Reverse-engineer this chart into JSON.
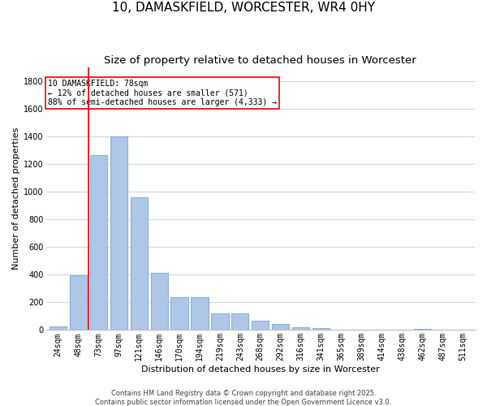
{
  "title": "10, DAMASKFIELD, WORCESTER, WR4 0HY",
  "subtitle": "Size of property relative to detached houses in Worcester",
  "xlabel": "Distribution of detached houses by size in Worcester",
  "ylabel": "Number of detached properties",
  "footer_line1": "Contains HM Land Registry data © Crown copyright and database right 2025.",
  "footer_line2": "Contains public sector information licensed under the Open Government Licence v3.0.",
  "annotation_line1": "10 DAMASKFIELD: 78sqm",
  "annotation_line2": "← 12% of detached houses are smaller (571)",
  "annotation_line3": "88% of semi-detached houses are larger (4,333) →",
  "bar_color": "#aec6e8",
  "bar_edgecolor": "#6699cc",
  "vline_color": "red",
  "vline_x_pos": 1.5,
  "categories": [
    "24sqm",
    "48sqm",
    "73sqm",
    "97sqm",
    "121sqm",
    "146sqm",
    "170sqm",
    "194sqm",
    "219sqm",
    "243sqm",
    "268sqm",
    "292sqm",
    "316sqm",
    "341sqm",
    "365sqm",
    "389sqm",
    "414sqm",
    "438sqm",
    "462sqm",
    "487sqm",
    "511sqm"
  ],
  "values": [
    25,
    395,
    1265,
    1400,
    960,
    415,
    235,
    235,
    120,
    120,
    65,
    45,
    20,
    15,
    5,
    5,
    5,
    0,
    10,
    0,
    0
  ],
  "ylim": [
    0,
    1900
  ],
  "yticks": [
    0,
    200,
    400,
    600,
    800,
    1000,
    1200,
    1400,
    1600,
    1800
  ],
  "background_color": "#ffffff",
  "grid_color": "#ccd6e8",
  "title_fontsize": 11,
  "subtitle_fontsize": 9.5,
  "axis_label_fontsize": 8,
  "tick_fontsize": 7,
  "footer_fontsize": 6,
  "annotation_fontsize": 7,
  "annotation_box_edgecolor": "red",
  "annotation_box_facecolor": "white"
}
